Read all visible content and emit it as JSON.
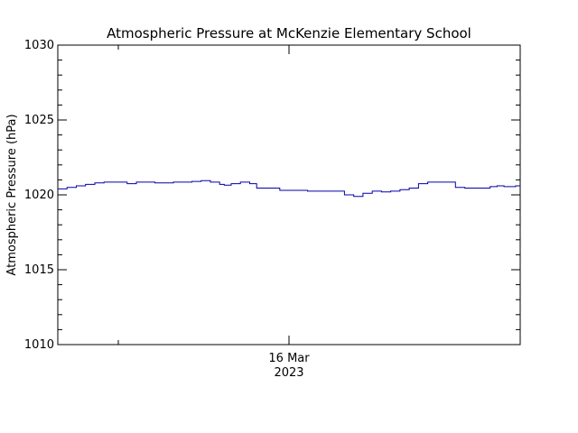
{
  "chart_data": {
    "type": "line",
    "title": "Atmospheric Pressure at McKenzie Elementary School",
    "ylabel": "Atmospheric Pressure (hPa)",
    "xlabel": "",
    "ylim": [
      1010,
      1030
    ],
    "xlim": [
      0,
      1
    ],
    "yticks": [
      1010,
      1015,
      1020,
      1025,
      1030
    ],
    "xticks": [
      {
        "x": 0.5,
        "label": "16 Mar",
        "sublabel": "2023"
      }
    ],
    "grid": false,
    "step": true,
    "series": [
      {
        "color": "#0000aa",
        "points": [
          [
            0.0,
            1020.4
          ],
          [
            0.02,
            1020.5
          ],
          [
            0.04,
            1020.6
          ],
          [
            0.06,
            1020.7
          ],
          [
            0.08,
            1020.8
          ],
          [
            0.1,
            1020.85
          ],
          [
            0.13,
            1020.85
          ],
          [
            0.15,
            1020.75
          ],
          [
            0.17,
            1020.85
          ],
          [
            0.19,
            1020.85
          ],
          [
            0.21,
            1020.8
          ],
          [
            0.23,
            1020.8
          ],
          [
            0.25,
            1020.85
          ],
          [
            0.27,
            1020.85
          ],
          [
            0.29,
            1020.9
          ],
          [
            0.31,
            1020.95
          ],
          [
            0.33,
            1020.85
          ],
          [
            0.35,
            1020.7
          ],
          [
            0.36,
            1020.65
          ],
          [
            0.375,
            1020.75
          ],
          [
            0.395,
            1020.85
          ],
          [
            0.415,
            1020.75
          ],
          [
            0.43,
            1020.45
          ],
          [
            0.46,
            1020.45
          ],
          [
            0.48,
            1020.3
          ],
          [
            0.52,
            1020.3
          ],
          [
            0.54,
            1020.25
          ],
          [
            0.6,
            1020.25
          ],
          [
            0.62,
            1020.0
          ],
          [
            0.64,
            1019.9
          ],
          [
            0.66,
            1020.1
          ],
          [
            0.68,
            1020.25
          ],
          [
            0.7,
            1020.2
          ],
          [
            0.72,
            1020.25
          ],
          [
            0.74,
            1020.35
          ],
          [
            0.76,
            1020.45
          ],
          [
            0.78,
            1020.75
          ],
          [
            0.8,
            1020.85
          ],
          [
            0.84,
            1020.85
          ],
          [
            0.86,
            1020.5
          ],
          [
            0.88,
            1020.45
          ],
          [
            0.92,
            1020.45
          ],
          [
            0.935,
            1020.55
          ],
          [
            0.95,
            1020.6
          ],
          [
            0.965,
            1020.55
          ],
          [
            0.98,
            1020.55
          ],
          [
            0.99,
            1020.6
          ],
          [
            1.0,
            1020.6
          ]
        ]
      }
    ]
  }
}
